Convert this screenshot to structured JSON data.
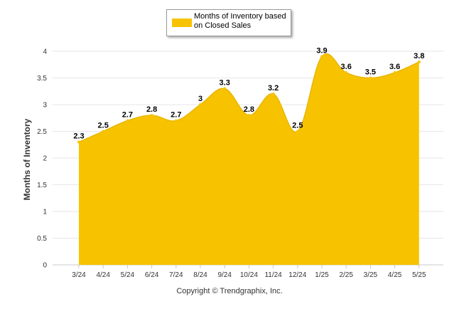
{
  "chart_data": {
    "type": "area",
    "categories": [
      "3/24",
      "4/24",
      "5/24",
      "6/24",
      "7/24",
      "8/24",
      "9/24",
      "10/24",
      "11/24",
      "12/24",
      "1/25",
      "2/25",
      "3/25",
      "4/25",
      "5/25"
    ],
    "series": [
      {
        "name": "Months of Inventory based on Closed Sales",
        "values": [
          2.3,
          2.5,
          2.7,
          2.8,
          2.7,
          3,
          3.3,
          2.8,
          3.2,
          2.5,
          3.9,
          3.6,
          3.5,
          3.6,
          3.8
        ],
        "data_labels": [
          "2.3",
          "2.5",
          "2.7",
          "2.8",
          "2.7",
          "3",
          "3.3",
          "2.8",
          "3.2",
          "2.5",
          "3.9",
          "3.6",
          "3.5",
          "3.6",
          "3.8"
        ],
        "color": "#F7C300"
      }
    ],
    "yticks": [
      "0",
      "0.5",
      "1",
      "1.5",
      "2",
      "2.5",
      "3",
      "3.5",
      "4"
    ],
    "ylim": [
      0,
      4
    ],
    "ylabel": "Months of Inventory",
    "xlabel": "",
    "grid": true,
    "legend_position": "top-center",
    "credit": "Copyright © Trendgraphix, Inc."
  }
}
